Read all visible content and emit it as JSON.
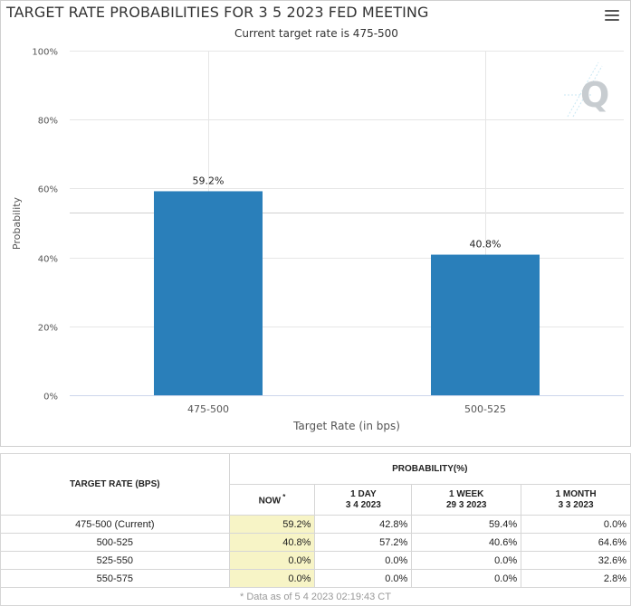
{
  "title": "TARGET RATE PROBABILITIES FOR 3 5 2023 FED MEETING",
  "subtitle": "Current target rate is 475-500",
  "chart_data": {
    "type": "bar",
    "categories": [
      "475-500",
      "500-525"
    ],
    "values": [
      59.2,
      40.8
    ],
    "data_labels": [
      "59.2%",
      "40.8%"
    ],
    "xlabel": "Target Rate (in bps)",
    "ylabel": "Probability",
    "ylim": [
      0,
      100
    ],
    "yticks": [
      "0%",
      "20%",
      "40%",
      "60%",
      "80%",
      "100%"
    ],
    "bar_color": "#2a7fba",
    "grid": true
  },
  "table": {
    "header_target": "TARGET RATE (BPS)",
    "header_prob": "PROBABILITY(%)",
    "cols": [
      {
        "line1": "NOW",
        "line2": "",
        "mark": "*"
      },
      {
        "line1": "1 DAY",
        "line2": "3 4 2023",
        "mark": ""
      },
      {
        "line1": "1 WEEK",
        "line2": "29 3 2023",
        "mark": ""
      },
      {
        "line1": "1 MONTH",
        "line2": "3 3 2023",
        "mark": ""
      }
    ],
    "rows": [
      {
        "rate": "475-500 (Current)",
        "values": [
          "59.2%",
          "42.8%",
          "59.4%",
          "0.0%"
        ]
      },
      {
        "rate": "500-525",
        "values": [
          "40.8%",
          "57.2%",
          "40.6%",
          "64.6%"
        ]
      },
      {
        "rate": "525-550",
        "values": [
          "0.0%",
          "0.0%",
          "0.0%",
          "32.6%"
        ]
      },
      {
        "rate": "550-575",
        "values": [
          "0.0%",
          "0.0%",
          "0.0%",
          "2.8%"
        ]
      }
    ],
    "footnote": "* Data as of 5 4 2023 02:19:43 CT"
  }
}
